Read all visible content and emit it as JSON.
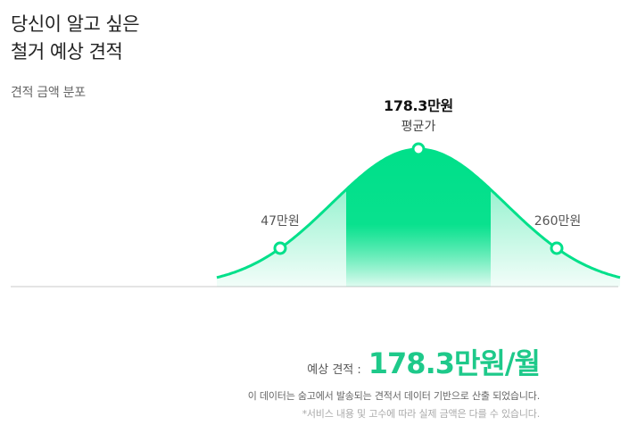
{
  "headline": {
    "line1": "당신이 알고 싶은",
    "line2": "철거 예상 견적"
  },
  "subhead": "견적 금액 분포",
  "chart_data": {
    "type": "area",
    "title": "",
    "points": {
      "low": {
        "label": "47만원",
        "value": 47
      },
      "average": {
        "value_label": "178.3만원",
        "label": "평균가",
        "value": 178.3
      },
      "high": {
        "label": "260만원",
        "value": 260
      }
    },
    "accent_color": "#00e08a",
    "grid": false
  },
  "estimate": {
    "label": "예상 견적 :",
    "value": "178.3만원/월"
  },
  "notes": {
    "line1": "이 데이터는 숨고에서 발송되는 견적서 데이터 기반으로 산출 되었습니다.",
    "line2": "*서비스 내용 및 고수에 따라 실제 금액은 다를 수 있습니다."
  },
  "colors": {
    "accent": "#00e08a",
    "estimate_text": "#1ec98a"
  }
}
